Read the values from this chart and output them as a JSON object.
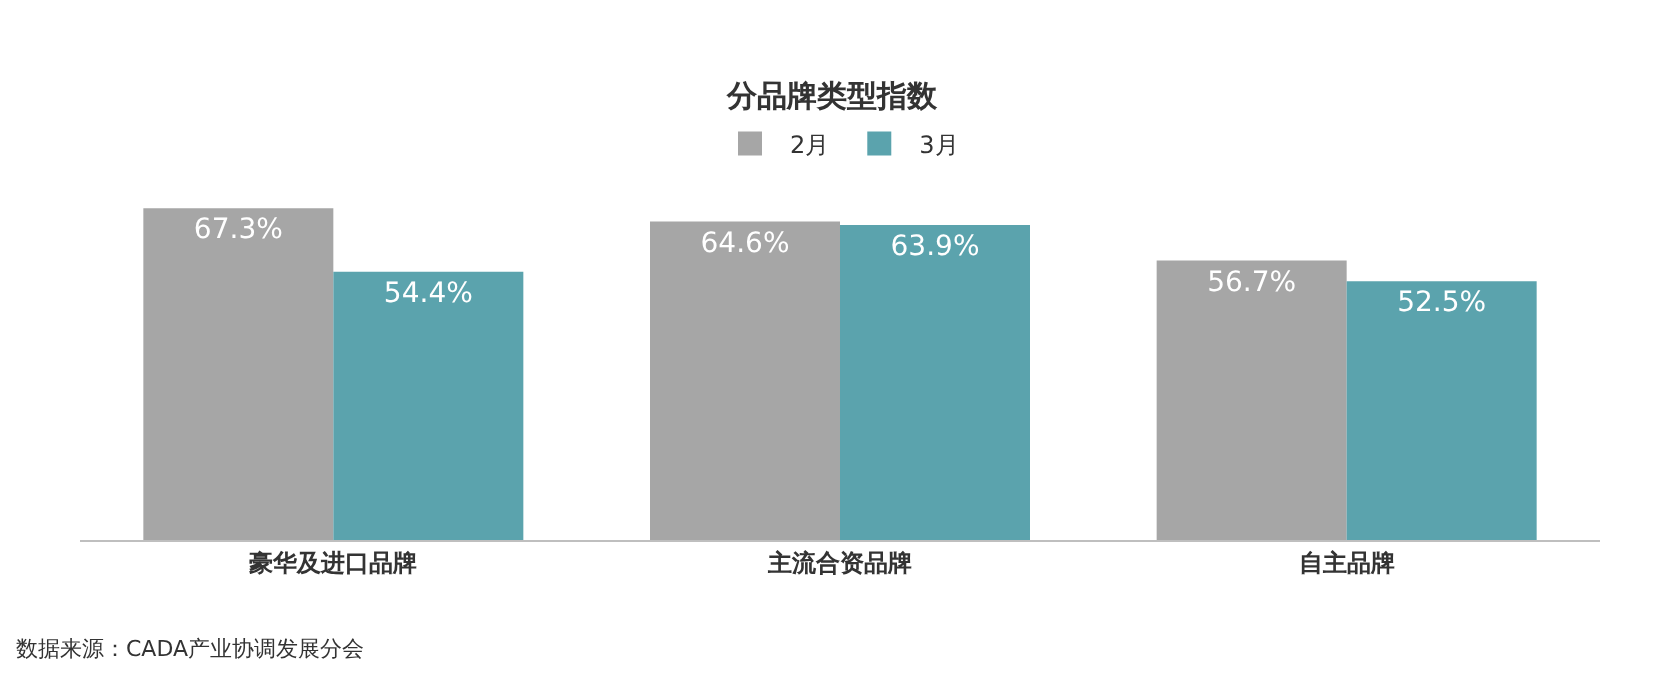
{
  "chart_data": {
    "type": "bar",
    "title": "分品牌类型指数",
    "categories": [
      "豪华及进口品牌",
      "主流合资品牌",
      "自主品牌"
    ],
    "series": [
      {
        "name": "2月",
        "color": "#a6a6a6",
        "values": [
          67.3,
          64.6,
          56.7
        ],
        "value_labels": [
          "67.3%",
          "64.6%",
          "56.7%"
        ]
      },
      {
        "name": "3月",
        "color": "#5ba3ad",
        "values": [
          54.4,
          63.9,
          52.5
        ],
        "value_labels": [
          "54.4%",
          "63.9%",
          "52.5%"
        ]
      }
    ],
    "legend": "top",
    "tick_labels": "x",
    "annotations": [
      "数据来源：CADA产业协调发展分会"
    ]
  }
}
